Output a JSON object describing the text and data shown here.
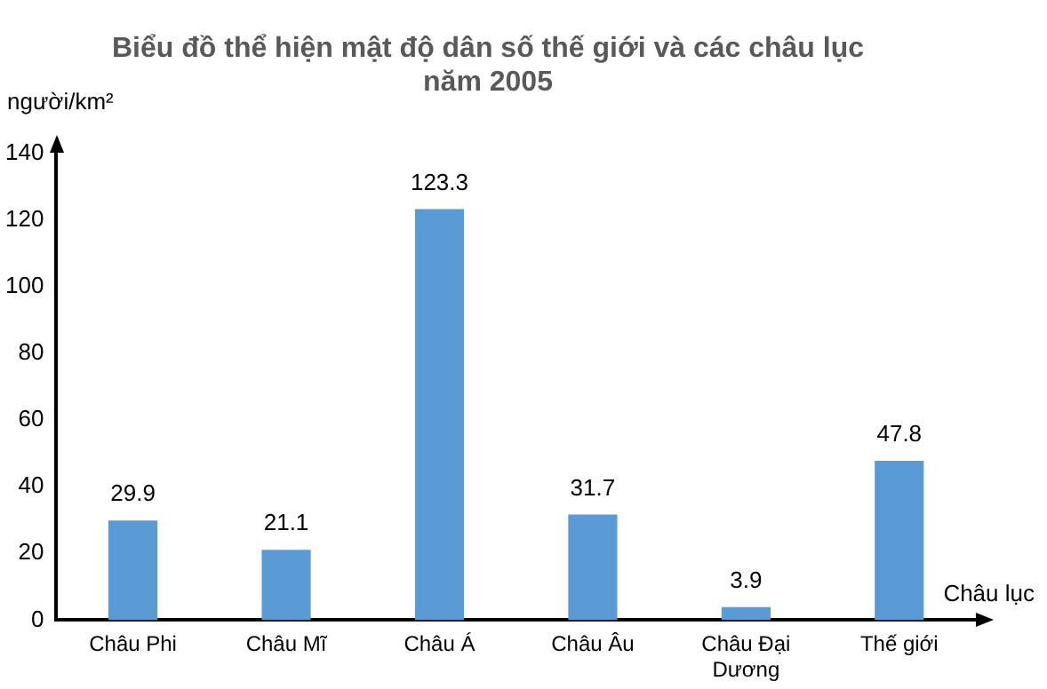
{
  "chart_data": {
    "type": "bar",
    "title": [
      "Biểu đồ thể hiện mật độ dân số thế giới và các châu lục",
      "năm 2005"
    ],
    "xlabel": "Châu lục",
    "ylabel": "người/km²",
    "categories": [
      "Châu Phi",
      "Châu Mĩ",
      "Châu Á",
      "Châu Âu",
      "Châu Đại Dương",
      "Thế giới"
    ],
    "values": [
      29.9,
      21.1,
      123.3,
      31.7,
      3.9,
      47.8
    ],
    "color": "#5b9bd5",
    "ylim": [
      0,
      140
    ],
    "yticks": [
      0,
      20,
      40,
      60,
      80,
      100,
      120,
      140
    ],
    "grid": false,
    "legend": false,
    "data_labels": true
  }
}
